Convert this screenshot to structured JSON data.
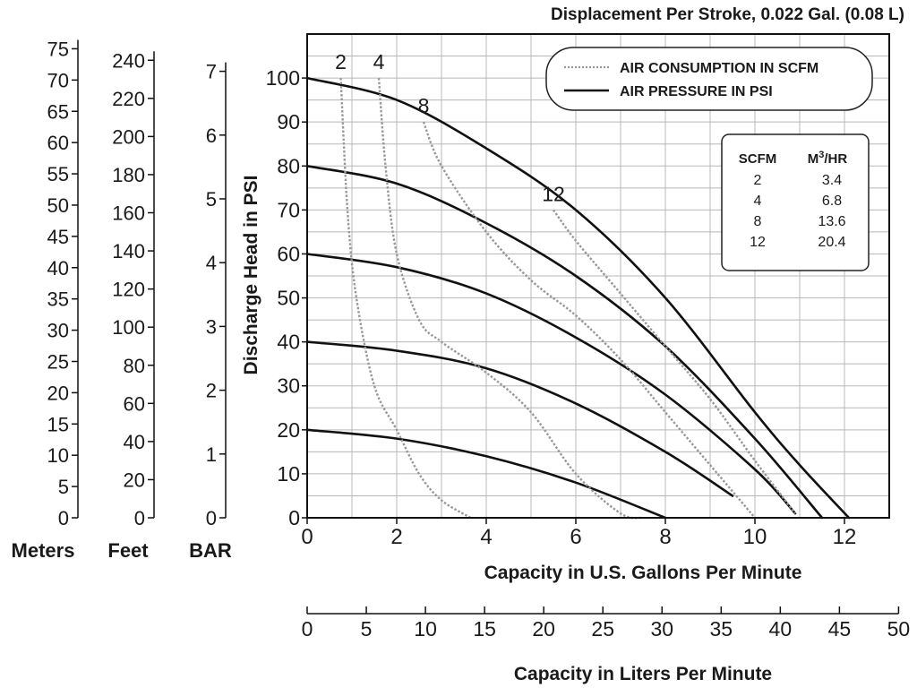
{
  "chart_data": {
    "type": "line",
    "title": "Displacement Per Stroke, 0.022 Gal. (0.08 L)",
    "xlabel": "Capacity in U.S. Gallons Per Minute",
    "ylabel": "Discharge Head in PSI",
    "xlim": [
      0,
      13
    ],
    "ylim": [
      0,
      110
    ],
    "grid": true,
    "x_ticks": [
      "0",
      "2",
      "4",
      "6",
      "8",
      "10",
      "12"
    ],
    "y_ticks": [
      "0",
      "10",
      "20",
      "30",
      "40",
      "50",
      "60",
      "70",
      "80",
      "90",
      "100"
    ],
    "legend": {
      "position": "top-right",
      "entries": [
        {
          "label": "AIR CONSUMPTION IN SCFM",
          "style": "dotted",
          "color": "#999999"
        },
        {
          "label": "AIR PRESSURE IN PSI",
          "style": "solid",
          "color": "#111111"
        }
      ]
    },
    "pressure_series": [
      {
        "name": "100",
        "x": [
          0,
          2,
          4,
          6,
          8,
          10,
          11,
          12.1
        ],
        "y": [
          100,
          95,
          84,
          70,
          50,
          24,
          12,
          0
        ]
      },
      {
        "name": "80",
        "x": [
          0,
          2,
          4,
          6,
          8,
          10,
          11.5
        ],
        "y": [
          80,
          76,
          67,
          55,
          39,
          18,
          0
        ]
      },
      {
        "name": "60",
        "x": [
          0,
          2,
          4,
          6,
          8,
          10,
          10.9
        ],
        "y": [
          60,
          57,
          51,
          41,
          28,
          11,
          1
        ]
      },
      {
        "name": "40",
        "x": [
          0,
          2,
          4,
          6,
          8,
          9.5
        ],
        "y": [
          40,
          38,
          34,
          26,
          15,
          5
        ]
      },
      {
        "name": "20",
        "x": [
          0,
          2,
          4,
          6,
          8
        ],
        "y": [
          20,
          18,
          14,
          8,
          0
        ]
      }
    ],
    "air_series": [
      {
        "name": "2",
        "x": [
          0.75,
          0.9,
          1.1,
          1.5,
          2.0,
          2.5,
          3.0,
          3.65
        ],
        "y": [
          100,
          70,
          50,
          30,
          20,
          10,
          4,
          0
        ]
      },
      {
        "name": "4",
        "x": [
          1.6,
          1.75,
          2.0,
          2.5,
          3.0,
          4.0,
          5.0,
          6.0,
          7.0,
          7.5
        ],
        "y": [
          100,
          80,
          60,
          45,
          40,
          33,
          24,
          10,
          1,
          0
        ]
      },
      {
        "name": "8",
        "x": [
          2.6,
          3.0,
          4.0,
          5.0,
          6.0,
          7.0,
          8.0,
          9.0,
          10.0
        ],
        "y": [
          90,
          80,
          65,
          54,
          46,
          36,
          24,
          12,
          0
        ]
      },
      {
        "name": "12",
        "x": [
          5.5,
          6.0,
          7.0,
          8.0,
          9.0,
          10.0,
          10.9
        ],
        "y": [
          70,
          63,
          51,
          39,
          27,
          13,
          1
        ]
      }
    ],
    "curve_labels": [
      "2",
      "4",
      "8",
      "12"
    ],
    "conversion_table": {
      "headers": [
        "SCFM",
        "M3/HR"
      ],
      "rows": [
        [
          "2",
          "3.4"
        ],
        [
          "4",
          "6.8"
        ],
        [
          "8",
          "13.6"
        ],
        [
          "12",
          "20.4"
        ]
      ]
    },
    "meters_axis": {
      "label": "Meters",
      "ticks": [
        "0",
        "5",
        "10",
        "15",
        "20",
        "25",
        "30",
        "35",
        "40",
        "45",
        "50",
        "55",
        "60",
        "65",
        "70",
        "75"
      ]
    },
    "feet_axis": {
      "label": "Feet",
      "ticks": [
        "0",
        "20",
        "40",
        "60",
        "80",
        "100",
        "120",
        "140",
        "160",
        "180",
        "200",
        "220",
        "240"
      ]
    },
    "bar_axis": {
      "label": "BAR",
      "ticks": [
        "0",
        "1",
        "2",
        "3",
        "4",
        "5",
        "6",
        "7"
      ]
    },
    "liters_axis": {
      "label": "Capacity in Liters Per Minute",
      "ticks": [
        "0",
        "5",
        "10",
        "15",
        "20",
        "25",
        "30",
        "35",
        "40",
        "45",
        "50"
      ]
    },
    "colors": {
      "pressure": "#111111",
      "air": "#999999",
      "grid": "#b8b8b8"
    }
  }
}
